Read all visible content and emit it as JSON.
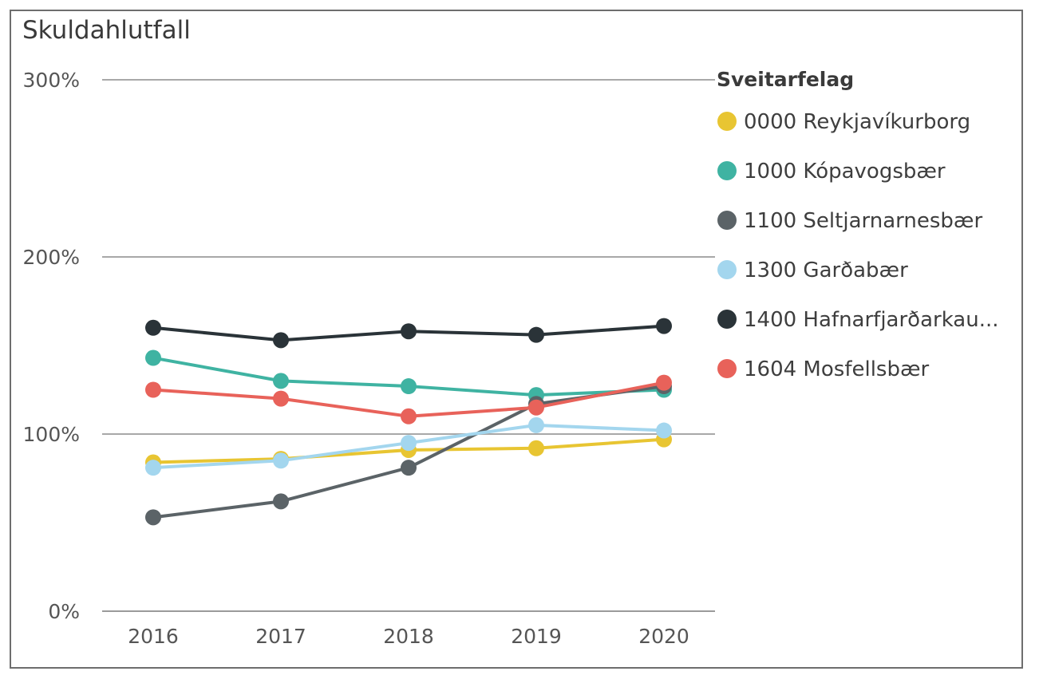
{
  "chart_data": {
    "type": "line",
    "title": "Skuldahlutfall",
    "xlabel": "",
    "ylabel": "",
    "x": [
      "2016",
      "2017",
      "2018",
      "2019",
      "2020"
    ],
    "ylim": [
      0,
      300
    ],
    "yticks": [
      0,
      100,
      200,
      300
    ],
    "ytick_labels": [
      "0%",
      "100%",
      "200%",
      "300%"
    ],
    "grid": true,
    "legend_title": "Sveitarfelag",
    "legend_position": "right",
    "series": [
      {
        "name": "0000 Reykjavíkurborg",
        "color": "#E8C532",
        "values": [
          84,
          86,
          91,
          92,
          97
        ]
      },
      {
        "name": "1000 Kópavogsbær",
        "color": "#3FB3A2",
        "values": [
          143,
          130,
          127,
          122,
          125
        ]
      },
      {
        "name": "1100 Seltjarnarnesbær",
        "color": "#5B6367",
        "values": [
          53,
          62,
          81,
          117,
          127
        ]
      },
      {
        "name": "1300 Garðabær",
        "color": "#A3D6EE",
        "values": [
          81,
          85,
          95,
          105,
          102
        ]
      },
      {
        "name": "1400 Hafnarfjarðarkau...",
        "color": "#2A3338",
        "values": [
          160,
          153,
          158,
          156,
          161
        ]
      },
      {
        "name": "1604 Mosfellsbær",
        "color": "#E8625A",
        "values": [
          125,
          120,
          110,
          115,
          129
        ]
      }
    ]
  }
}
